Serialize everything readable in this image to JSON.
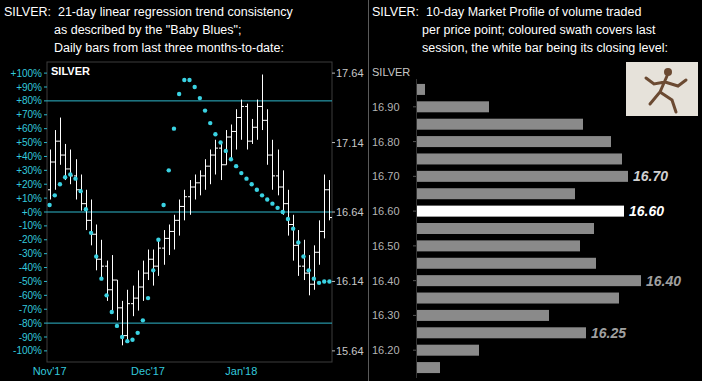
{
  "chart_data": [
    {
      "type": "ohlc",
      "title": [
        "SILVER:  21-day linear regression trend consistency",
        "as described by the \"Baby Blues\";",
        "Daily bars from last three months-to-date:"
      ],
      "label": "SILVER",
      "categories": [
        "Nov'17",
        null,
        null,
        null,
        null,
        null,
        null,
        null,
        null,
        null,
        null,
        null,
        null,
        null,
        null,
        null,
        null,
        null,
        null,
        "Dec'17",
        null,
        null,
        null,
        null,
        null,
        null,
        null,
        null,
        null,
        null,
        null,
        null,
        null,
        null,
        null,
        null,
        null,
        "Jan'18",
        null,
        null,
        null,
        null,
        null,
        null,
        null,
        null,
        null,
        null,
        null,
        null,
        null,
        null,
        null,
        null,
        null
      ],
      "series": [
        {
          "type": "ohlc",
          "axis": "y2",
          "color": "#ffffff",
          "open": [
            16.8,
            17.0,
            17.15,
            17.05,
            16.95,
            16.9,
            16.8,
            16.7,
            16.58,
            16.48,
            16.3,
            16.25,
            16.08,
            16.15,
            15.95,
            15.75,
            15.98,
            16.02,
            16.1,
            16.2,
            16.3,
            16.25,
            16.38,
            16.45,
            16.5,
            16.58,
            16.68,
            16.75,
            16.82,
            16.85,
            16.9,
            16.97,
            17.05,
            17.1,
            16.98,
            17.18,
            17.22,
            17.32,
            17.4,
            17.15,
            17.25,
            17.4,
            17.3,
            17.05,
            16.9,
            16.82,
            16.7,
            16.55,
            16.4,
            16.25,
            16.2,
            16.12,
            16.35,
            16.5,
            16.8
          ],
          "high": [
            17.09,
            17.23,
            17.32,
            17.13,
            17.09,
            17.02,
            16.91,
            16.8,
            16.73,
            16.55,
            16.44,
            16.29,
            16.33,
            16.15,
            16.0,
            16.08,
            16.11,
            16.22,
            16.29,
            16.37,
            16.37,
            16.44,
            16.51,
            16.55,
            16.62,
            16.73,
            16.8,
            16.87,
            16.91,
            16.94,
            17.02,
            17.09,
            17.16,
            17.13,
            17.23,
            17.27,
            17.38,
            17.45,
            17.42,
            17.31,
            17.45,
            17.63,
            17.38,
            17.16,
            17.09,
            16.94,
            16.8,
            16.62,
            16.51,
            16.44,
            16.33,
            16.4,
            16.58,
            16.91,
            16.87
          ],
          "low": [
            16.73,
            16.8,
            16.98,
            16.87,
            16.84,
            16.73,
            16.65,
            16.51,
            16.4,
            16.22,
            16.15,
            16.0,
            15.93,
            15.86,
            15.68,
            15.72,
            15.89,
            15.93,
            16.0,
            16.15,
            16.11,
            16.18,
            16.26,
            16.33,
            16.37,
            16.47,
            16.58,
            16.62,
            16.73,
            16.76,
            16.8,
            16.84,
            16.91,
            16.87,
            16.98,
            17.02,
            17.09,
            17.16,
            17.09,
            17.13,
            17.16,
            17.23,
            16.98,
            16.8,
            16.76,
            16.62,
            16.47,
            16.29,
            16.18,
            16.15,
            16.04,
            16.08,
            16.26,
            16.45,
            16.58
          ],
          "close": [
            17.0,
            17.15,
            17.05,
            16.95,
            16.9,
            16.8,
            16.7,
            16.58,
            16.48,
            16.3,
            16.25,
            16.08,
            16.15,
            15.95,
            15.75,
            15.98,
            16.02,
            16.1,
            16.2,
            16.3,
            16.25,
            16.38,
            16.45,
            16.5,
            16.58,
            16.68,
            16.75,
            16.82,
            16.85,
            16.9,
            16.97,
            17.05,
            17.1,
            16.98,
            17.18,
            17.22,
            17.32,
            17.4,
            17.15,
            17.25,
            17.4,
            17.3,
            17.05,
            16.9,
            16.82,
            16.7,
            16.55,
            16.4,
            16.25,
            16.2,
            16.12,
            16.35,
            16.5,
            16.8,
            16.6
          ]
        },
        {
          "type": "scatter",
          "marker": "circle",
          "color": "#3ad2e2",
          "values": [
            5,
            12,
            20,
            25,
            27,
            24,
            15,
            2,
            -15,
            -32,
            -48,
            -60,
            -72,
            -82,
            -90,
            -93,
            -92,
            -87,
            -78,
            -62,
            -42,
            -20,
            5,
            30,
            60,
            85,
            95,
            95,
            90,
            82,
            73,
            64,
            56,
            50,
            44,
            38,
            33,
            28,
            24,
            20,
            16,
            12,
            9,
            6,
            3,
            0,
            -5,
            -12,
            -22,
            -32,
            -42,
            -48,
            -51,
            -50,
            -50
          ]
        }
      ],
      "hlines": [
        80,
        0,
        -80
      ],
      "ylim": [
        -108,
        108
      ],
      "yticks": [
        {
          "value": 100,
          "label": "+100%"
        },
        {
          "value": 90,
          "label": "+90%"
        },
        {
          "value": 80,
          "label": "+80%"
        },
        {
          "value": 70,
          "label": "+70%"
        },
        {
          "value": 60,
          "label": "+60%"
        },
        {
          "value": 50,
          "label": "+50%"
        },
        {
          "value": 40,
          "label": "+40%"
        },
        {
          "value": 30,
          "label": "+30%"
        },
        {
          "value": 20,
          "label": "+20%"
        },
        {
          "value": 10,
          "label": "+10%"
        },
        {
          "value": 0,
          "label": "+0%"
        },
        {
          "value": -10,
          "label": "-10%"
        },
        {
          "value": -20,
          "label": "-20%"
        },
        {
          "value": -30,
          "label": "-30%"
        },
        {
          "value": -40,
          "label": "-40%"
        },
        {
          "value": -50,
          "label": "-50%"
        },
        {
          "value": -60,
          "label": "-60%"
        },
        {
          "value": -70,
          "label": "-70%"
        },
        {
          "value": -80,
          "label": "-80%"
        },
        {
          "value": -90,
          "label": "-90%"
        },
        {
          "value": -100,
          "label": "-100%"
        }
      ],
      "y2lim": [
        15.56,
        17.72
      ],
      "y2ticks": [
        15.64,
        16.14,
        16.64,
        17.14,
        17.64
      ]
    },
    {
      "type": "bar",
      "orientation": "horizontal",
      "title": [
        "SILVER:  10-day Market Profile of volume traded",
        "per price point; coloured swath covers last",
        "session, the white bar being its closing level:"
      ],
      "label": "SILVER",
      "y": [
        16.95,
        16.9,
        16.85,
        16.8,
        16.75,
        16.7,
        16.65,
        16.6,
        16.55,
        16.5,
        16.45,
        16.4,
        16.35,
        16.3,
        16.25,
        16.2,
        16.15
      ],
      "values": [
        8,
        72,
        166,
        194,
        205,
        211,
        158,
        207,
        177,
        163,
        179,
        224,
        202,
        132,
        169,
        62,
        23
      ],
      "colors": [
        "#8a8a8a",
        "#8a8a8a",
        "#8a8a8a",
        "#8a8a8a",
        "#8a8a8a",
        "#8a8a8a",
        "#8a8a8a",
        "#ffffff",
        "#8a8a8a",
        "#8a8a8a",
        "#8a8a8a",
        "#8a8a8a",
        "#8a8a8a",
        "#8a8a8a",
        "#8a8a8a",
        "#8a8a8a",
        "#8a8a8a"
      ],
      "annotations": [
        {
          "y": 16.7,
          "text": "16.70",
          "color": "#d0d0d0"
        },
        {
          "y": 16.6,
          "text": "16.60",
          "color": "#ffffff"
        },
        {
          "y": 16.4,
          "text": "16.40",
          "color": "#a0a0a0"
        },
        {
          "y": 16.25,
          "text": "16.25",
          "color": "#a0a0a0"
        }
      ],
      "xlim": [
        0,
        270
      ],
      "ylim": [
        16.12,
        16.98
      ],
      "yticks": [
        {
          "value": 16.9,
          "label": "16.90"
        },
        {
          "value": 16.8,
          "label": "16.80"
        },
        {
          "value": 16.7,
          "label": "16.70"
        },
        {
          "value": 16.6,
          "label": "16.60"
        },
        {
          "value": 16.5,
          "label": "16.50"
        },
        {
          "value": 16.4,
          "label": "16.40"
        },
        {
          "value": 16.3,
          "label": "16.30"
        },
        {
          "value": 16.2,
          "label": "16.20"
        }
      ],
      "tick_labels": "y"
    }
  ]
}
